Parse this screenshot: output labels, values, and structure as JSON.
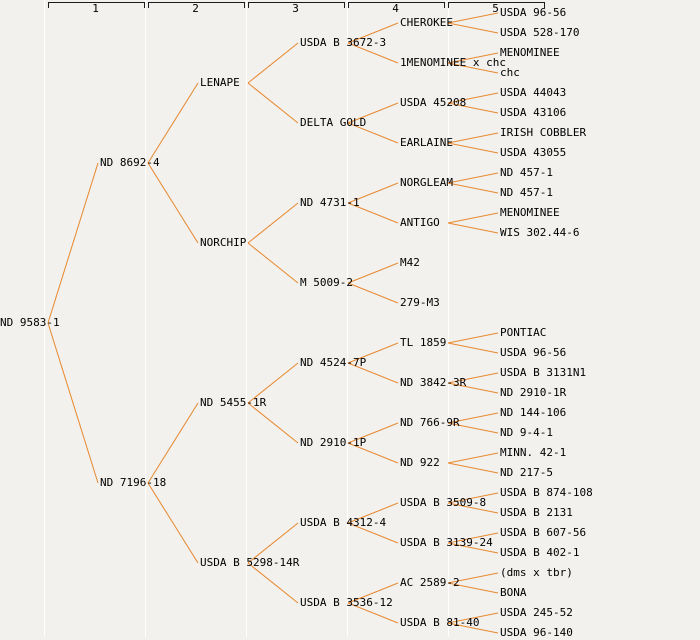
{
  "ruler": {
    "columns": [
      "1",
      "2",
      "3",
      "4",
      "5"
    ]
  },
  "colors": {
    "background": "#F2F1EE",
    "separator": "#FFFFFF",
    "edge": "#E8882F",
    "text": "#000000",
    "ruler": "#1B1B1B"
  },
  "tree": {
    "label": "ND 9583-1",
    "children": [
      {
        "label": "ND 8692-4",
        "children": [
          {
            "label": "LENAPE",
            "children": [
              {
                "label": "USDA B 3672-3",
                "children": [
                  {
                    "label": "CHEROKEE",
                    "children": [
                      {
                        "label": "USDA 96-56"
                      },
                      {
                        "label": "USDA 528-170"
                      }
                    ]
                  },
                  {
                    "label": "1MENOMINEE x chc",
                    "children": [
                      {
                        "label": "MENOMINEE"
                      },
                      {
                        "label": "chc"
                      }
                    ]
                  }
                ]
              },
              {
                "label": "DELTA GOLD",
                "children": [
                  {
                    "label": "USDA 45208",
                    "children": [
                      {
                        "label": "USDA 44043"
                      },
                      {
                        "label": "USDA 43106"
                      }
                    ]
                  },
                  {
                    "label": "EARLAINE",
                    "children": [
                      {
                        "label": "IRISH COBBLER"
                      },
                      {
                        "label": "USDA 43055"
                      }
                    ]
                  }
                ]
              }
            ]
          },
          {
            "label": "NORCHIP",
            "children": [
              {
                "label": "ND 4731-1",
                "children": [
                  {
                    "label": "NORGLEAM",
                    "children": [
                      {
                        "label": "ND 457-1"
                      },
                      {
                        "label": "ND 457-1"
                      }
                    ]
                  },
                  {
                    "label": "ANTIGO",
                    "children": [
                      {
                        "label": "MENOMINEE"
                      },
                      {
                        "label": "WIS 302.44-6"
                      }
                    ]
                  }
                ]
              },
              {
                "label": "M 5009-2",
                "children": [
                  {
                    "label": "M42"
                  },
                  {
                    "label": "279-M3"
                  }
                ]
              }
            ]
          }
        ]
      },
      {
        "label": "ND 7196-18",
        "children": [
          {
            "label": "ND 5455-1R",
            "children": [
              {
                "label": "ND 4524-7P",
                "children": [
                  {
                    "label": "TL 1859",
                    "children": [
                      {
                        "label": "PONTIAC"
                      },
                      {
                        "label": "USDA 96-56"
                      }
                    ]
                  },
                  {
                    "label": "ND 3842-3R",
                    "children": [
                      {
                        "label": "USDA B 3131N1"
                      },
                      {
                        "label": "ND 2910-1R"
                      }
                    ]
                  }
                ]
              },
              {
                "label": "ND 2910-1P",
                "children": [
                  {
                    "label": "ND 766-9R",
                    "children": [
                      {
                        "label": "ND 144-106"
                      },
                      {
                        "label": "ND 9-4-1"
                      }
                    ]
                  },
                  {
                    "label": "ND 922",
                    "children": [
                      {
                        "label": "MINN. 42-1"
                      },
                      {
                        "label": "ND 217-5"
                      }
                    ]
                  }
                ]
              }
            ]
          },
          {
            "label": "USDA B 5298-14R",
            "children": [
              {
                "label": "USDA B 4312-4",
                "children": [
                  {
                    "label": "USDA B 3509-8",
                    "children": [
                      {
                        "label": "USDA B 874-108"
                      },
                      {
                        "label": "USDA B 2131"
                      }
                    ]
                  },
                  {
                    "label": "USDA B 3139-24",
                    "children": [
                      {
                        "label": "USDA B 607-56"
                      },
                      {
                        "label": "USDA B 402-1"
                      }
                    ]
                  }
                ]
              },
              {
                "label": "USDA B 3536-12",
                "children": [
                  {
                    "label": "AC 2589-2",
                    "children": [
                      {
                        "label": "(dms x tbr)"
                      },
                      {
                        "label": "BONA"
                      }
                    ]
                  },
                  {
                    "label": "USDA B 81-40",
                    "children": [
                      {
                        "label": "USDA 245-52"
                      },
                      {
                        "label": "USDA 96-140"
                      }
                    ]
                  }
                ]
              }
            ]
          }
        ]
      }
    ]
  }
}
